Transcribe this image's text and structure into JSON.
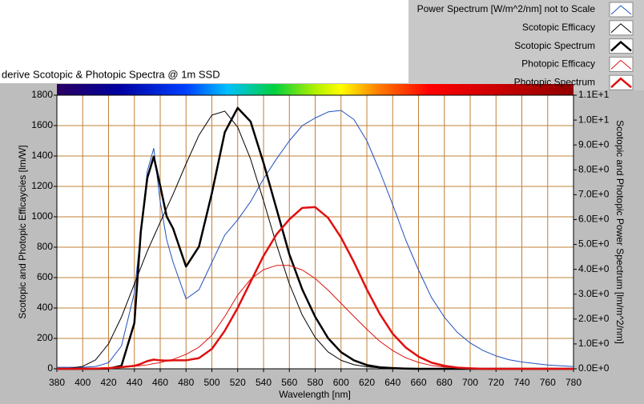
{
  "chart_data": {
    "type": "line",
    "title": "derive Scotopic & Photopic Spectra @ 1m SSD",
    "x_label": "Wavelength [nm]",
    "y_label": "Scotopic and Photopic Efficaycies [lm/W]",
    "y2_label": "Scotopic and Photopic Power Spectrum [lm/m^2/nm]",
    "x": [
      380,
      390,
      400,
      410,
      420,
      430,
      440,
      445,
      450,
      455,
      460,
      465,
      470,
      480,
      490,
      500,
      510,
      520,
      530,
      540,
      550,
      560,
      570,
      580,
      590,
      600,
      610,
      620,
      630,
      640,
      650,
      660,
      670,
      680,
      690,
      700,
      710,
      720,
      730,
      740,
      750,
      760,
      770,
      780
    ],
    "series": [
      {
        "name": "Power Spectrum [W/m^2/nm] not to Scale",
        "color": "#2050c0",
        "line_width": 1,
        "values": [
          10,
          10,
          10,
          15,
          40,
          150,
          500,
          900,
          1300,
          1450,
          1100,
          850,
          700,
          460,
          520,
          700,
          880,
          980,
          1100,
          1250,
          1380,
          1500,
          1600,
          1650,
          1690,
          1700,
          1640,
          1500,
          1300,
          1080,
          850,
          650,
          470,
          340,
          240,
          170,
          120,
          85,
          60,
          45,
          35,
          25,
          20,
          15
        ]
      },
      {
        "name": "Scotopic Efficacy",
        "color": "#000000",
        "line_width": 1,
        "values": [
          1,
          4,
          16,
          59,
          164,
          340,
          558,
          666,
          774,
          869,
          964,
          1057,
          1149,
          1348,
          1537,
          1669,
          1695,
          1590,
          1379,
          1105,
          818,
          559,
          353,
          206,
          111,
          56,
          27,
          13,
          6,
          3,
          1,
          1,
          0,
          0,
          0,
          0,
          0,
          0,
          0,
          0,
          0,
          0,
          0,
          0
        ]
      },
      {
        "name": "Scotopic Spectrum",
        "color": "#000000",
        "line_width": 2.5,
        "axis": "y2",
        "values": [
          0,
          0,
          0,
          0,
          0.01,
          0.12,
          1.84,
          5.52,
          7.67,
          8.53,
          7.36,
          6.13,
          5.64,
          4.11,
          4.91,
          7.06,
          9.51,
          10.49,
          9.94,
          8.28,
          6.44,
          4.6,
          3.19,
          2.09,
          1.23,
          0.67,
          0.34,
          0.15,
          0.06,
          0.03,
          0.01,
          0,
          0,
          0,
          0,
          0,
          0,
          0,
          0,
          0,
          0,
          0,
          0,
          0
        ]
      },
      {
        "name": "Photopic Efficacy",
        "color": "#e01010",
        "line_width": 1,
        "values": [
          0,
          0,
          0,
          1,
          3,
          8,
          16,
          21,
          26,
          34,
          41,
          52,
          62,
          95,
          142,
          221,
          344,
          485,
          589,
          652,
          680,
          680,
          650,
          594,
          517,
          431,
          344,
          260,
          181,
          120,
          73,
          42,
          22,
          12,
          6,
          3,
          1,
          1,
          0,
          0,
          0,
          0,
          0,
          0
        ]
      },
      {
        "name": "Photopic Spectrum",
        "color": "#e01010",
        "line_width": 2.5,
        "axis": "y2",
        "values": [
          0,
          0,
          0,
          0.01,
          0.03,
          0.07,
          0.12,
          0.2,
          0.31,
          0.37,
          0.34,
          0.33,
          0.34,
          0.34,
          0.43,
          0.8,
          1.53,
          2.45,
          3.5,
          4.54,
          5.4,
          6.01,
          6.47,
          6.5,
          6.07,
          5.28,
          4.29,
          3.19,
          2.21,
          1.41,
          0.86,
          0.49,
          0.25,
          0.12,
          0.05,
          0.02,
          0,
          0,
          0,
          0,
          0,
          0,
          0,
          0
        ]
      }
    ],
    "xlim": [
      380,
      780
    ],
    "xticks": [
      380,
      400,
      420,
      440,
      460,
      480,
      500,
      520,
      540,
      560,
      580,
      600,
      620,
      640,
      660,
      680,
      700,
      720,
      740,
      760,
      780
    ],
    "ylim": [
      0,
      1800
    ],
    "yticks": [
      0,
      200,
      400,
      600,
      800,
      1000,
      1200,
      1400,
      1600,
      1800
    ],
    "y2lim": [
      0,
      11
    ],
    "y2ticks": [
      {
        "value": 0,
        "label": "0.0E+0"
      },
      {
        "value": 1,
        "label": "1.0E+0"
      },
      {
        "value": 2,
        "label": "2.0E+0"
      },
      {
        "value": 3,
        "label": "3.0E+0"
      },
      {
        "value": 4,
        "label": "4.0E+0"
      },
      {
        "value": 5,
        "label": "5.0E+0"
      },
      {
        "value": 6,
        "label": "6.0E+0"
      },
      {
        "value": 7,
        "label": "7.0E+0"
      },
      {
        "value": 8,
        "label": "8.0E+0"
      },
      {
        "value": 9,
        "label": "9.0E+0"
      },
      {
        "value": 10,
        "label": "1.0E+1"
      },
      {
        "value": 11,
        "label": "1.1E+1"
      }
    ],
    "grid": true,
    "grid_color": "#c0803a"
  }
}
